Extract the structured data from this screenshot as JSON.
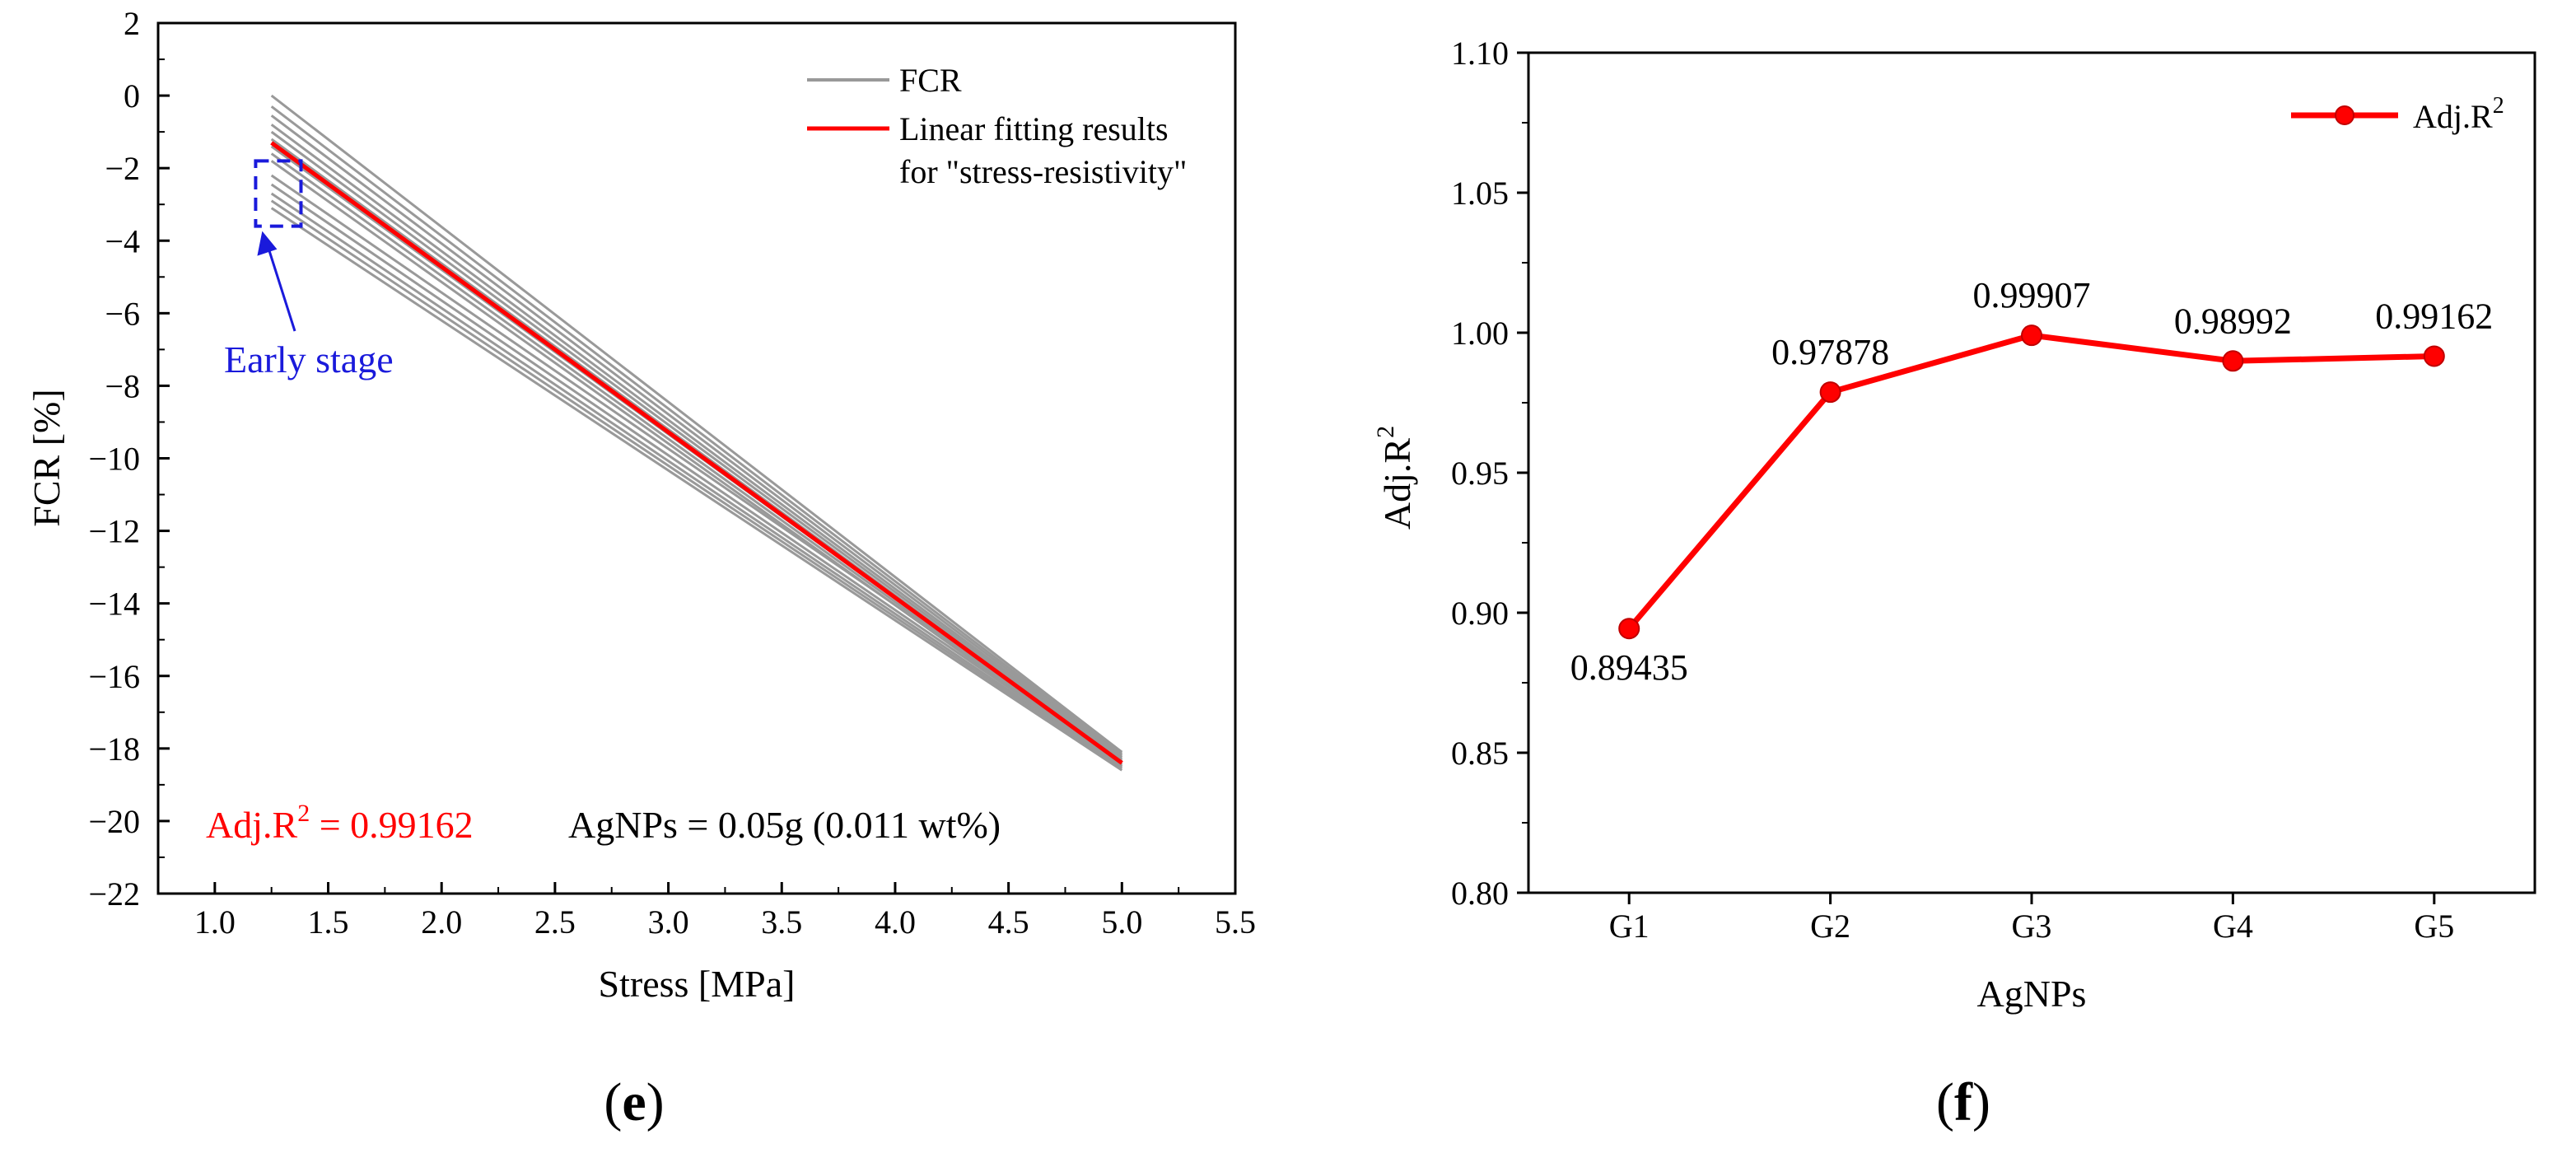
{
  "panel_e": {
    "label_open": "(",
    "label_letter": "e",
    "label_close": ")",
    "annotation_r2_prefix": "Adj.R",
    "annotation_r2_sup": "2",
    "annotation_r2_value": " = 0.99162",
    "annotation_agnps": "AgNPs = 0.05g (0.011 wt%)",
    "annotation_early_stage": "Early stage",
    "colors": {
      "fcr": "#999999",
      "fit": "#ff0000",
      "box": "#1a1adb",
      "r2": "#ff0000"
    }
  },
  "panel_f": {
    "label_open": "(",
    "label_letter": "f",
    "label_close": ")",
    "colors": {
      "line": "#ff0000",
      "marker": "#ff0000"
    }
  },
  "chart_data": [
    {
      "type": "line",
      "title": "",
      "xlabel": "Stress [MPa]",
      "ylabel": "FCR [%]",
      "xlim": [
        0.75,
        5.5
      ],
      "ylim": [
        -22,
        2
      ],
      "xticks": [
        "1.0",
        "1.5",
        "2.0",
        "2.5",
        "3.0",
        "3.5",
        "4.0",
        "4.5",
        "5.0",
        "5.5"
      ],
      "yticks": [
        "2",
        "0",
        "−2",
        "−4",
        "−6",
        "−8",
        "−10",
        "−12",
        "−14",
        "−16",
        "−18",
        "−20",
        "−22"
      ],
      "legend": {
        "position": "top-right",
        "entries": [
          "FCR",
          "Linear fitting results",
          "for \"stress-resistivity\""
        ]
      },
      "series": [
        {
          "name": "FCR",
          "style": "bundle",
          "x": [
            1.25,
            5.0
          ],
          "start_values": [
            0.0,
            -0.3,
            -0.55,
            -0.8,
            -1.0,
            -1.2,
            -1.4,
            -1.6,
            -1.8,
            -2.2,
            -2.45,
            -2.7,
            -2.9,
            -3.1
          ],
          "end_values": [
            -18.1,
            -18.15,
            -18.2,
            -18.25,
            -18.3,
            -18.35,
            -18.4,
            -18.45,
            -18.5,
            -18.35,
            -18.45,
            -18.5,
            -18.55,
            -18.6
          ]
        },
        {
          "name": "Linear fitting results for \"stress-resistivity\"",
          "x": [
            1.25,
            5.0
          ],
          "y": [
            -1.3,
            -18.4
          ]
        }
      ],
      "annotation_box": {
        "x": [
          1.18,
          1.38
        ],
        "y": [
          -3.6,
          -1.8
        ]
      }
    },
    {
      "type": "line",
      "title": "",
      "xlabel": "AgNPs",
      "ylabel_prefix": "Adj.R",
      "ylabel_sup": "2",
      "categories": [
        "G1",
        "G2",
        "G3",
        "G4",
        "G5"
      ],
      "ylim": [
        0.8,
        1.1
      ],
      "yticks": [
        "0.80",
        "0.85",
        "0.90",
        "0.95",
        "1.00",
        "1.05",
        "1.10"
      ],
      "legend": {
        "position": "top-right",
        "entry_prefix": "Adj.R",
        "entry_sup": "2"
      },
      "series": [
        {
          "name": "Adj.R2",
          "values": [
            0.89435,
            0.97878,
            0.99907,
            0.98992,
            0.99162
          ],
          "labels": [
            "0.89435",
            "0.97878",
            "0.99907",
            "0.98992",
            "0.99162"
          ]
        }
      ]
    }
  ]
}
